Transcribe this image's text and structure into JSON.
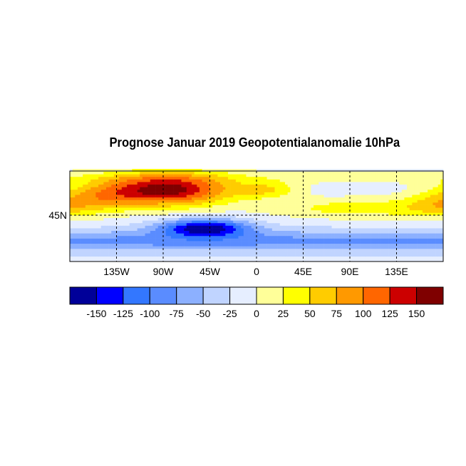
{
  "chart_data": {
    "type": "heatmap",
    "title": "Prognose Januar 2019 Geopotentialanomalie 10hPa",
    "projection": "cylindrical",
    "lon_range": [
      -180,
      180
    ],
    "lat_range": [
      0,
      88
    ],
    "x_ticks": [
      {
        "lon": -135,
        "label": "135W"
      },
      {
        "lon": -90,
        "label": "90W"
      },
      {
        "lon": -45,
        "label": "45W"
      },
      {
        "lon": 0,
        "label": "0"
      },
      {
        "lon": 45,
        "label": "45E"
      },
      {
        "lon": 90,
        "label": "90E"
      },
      {
        "lon": 135,
        "label": "135E"
      }
    ],
    "y_ticks": [
      {
        "lat": 45,
        "label": "45N"
      }
    ],
    "grid": "dashed",
    "features": {
      "max_positive": "above 150 over Canada/Greenland",
      "min_negative": "below -150 over western North Atlantic near 30N",
      "eurasia": "25 to 75 band near 50-60N"
    },
    "colorbar": {
      "levels": [
        -150,
        -125,
        -100,
        -75,
        -50,
        -25,
        0,
        25,
        50,
        75,
        100,
        125,
        150
      ],
      "labels": [
        "-150",
        "-125",
        "-100",
        "-75",
        "-50",
        "-25",
        "0",
        "25",
        "50",
        "75",
        "100",
        "125",
        "150"
      ],
      "colors": [
        "#000099",
        "#0000ff",
        "#3377ff",
        "#5a8cff",
        "#8cb0ff",
        "#c0d4ff",
        "#e6eeff",
        "#ffff99",
        "#ffff00",
        "#ffcc00",
        "#ff9900",
        "#ff6600",
        "#cc0000",
        "#7f0000"
      ]
    }
  }
}
